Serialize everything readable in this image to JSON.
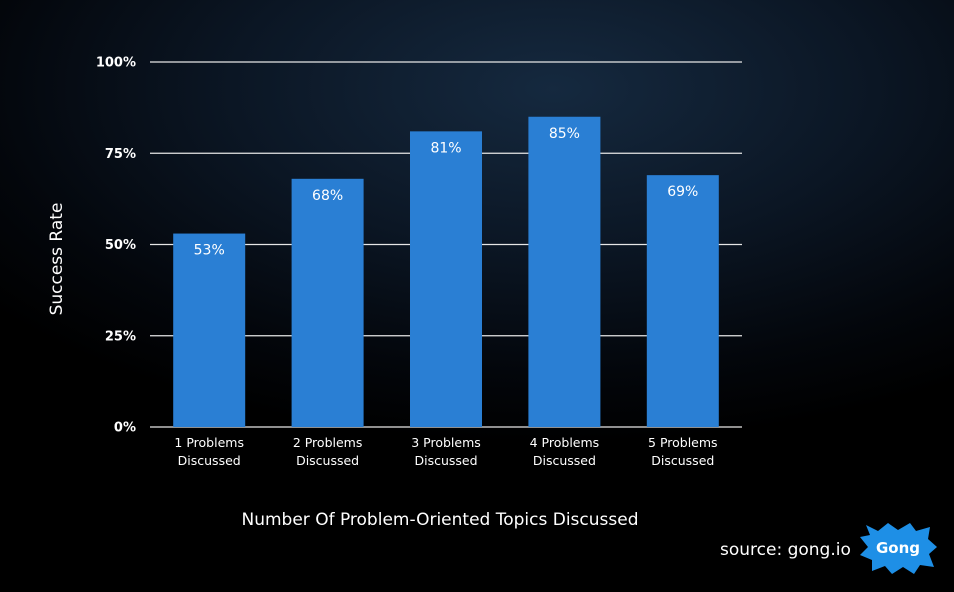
{
  "chart_data": {
    "type": "bar",
    "categories": [
      [
        "1 Problems",
        "Discussed"
      ],
      [
        "2 Problems",
        "Discussed"
      ],
      [
        "3 Problems",
        "Discussed"
      ],
      [
        "4 Problems",
        "Discussed"
      ],
      [
        "5 Problems",
        "Discussed"
      ]
    ],
    "values": [
      53,
      68,
      81,
      85,
      69
    ],
    "value_labels": [
      "53%",
      "68%",
      "81%",
      "85%",
      "69%"
    ],
    "xlabel": "Number Of Problem-Oriented Topics Discussed",
    "ylabel": "Success Rate",
    "ylim": [
      0,
      100
    ],
    "yticks": [
      0,
      25,
      50,
      75,
      100
    ],
    "ytick_labels": [
      "0%",
      "25%",
      "50%",
      "75%",
      "100%"
    ],
    "grid": true,
    "bar_color": "#2a7fd4",
    "grid_color": "#e6e6e6"
  },
  "footer": {
    "source": "source: gong.io",
    "logo_text": "Gong",
    "logo_color": "#1e8fe6"
  }
}
